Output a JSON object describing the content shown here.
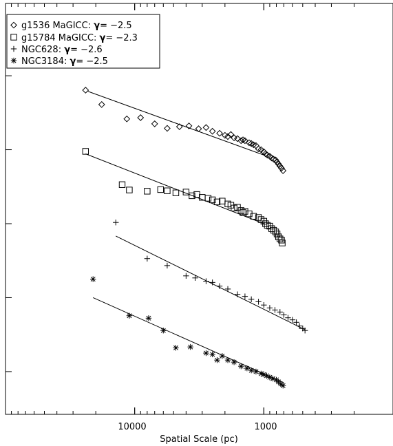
{
  "chart_data": {
    "type": "scatter",
    "title": "",
    "xlabel": "Spatial Scale (pc)",
    "ylabel": "",
    "x_scale": "log",
    "x_reversed": true,
    "xlim": [
      100000,
      100
    ],
    "x_tick_labels": [
      {
        "value": 10000,
        "label": "10000"
      },
      {
        "value": 1000,
        "label": "1000"
      }
    ],
    "ylim": [
      0,
      10
    ],
    "y_tick_values": [
      1.04,
      2.84,
      4.64,
      6.44,
      8.24
    ],
    "grid": false,
    "legend_placement": "top-left",
    "legend": [
      {
        "marker": "diamond",
        "text": "g1536 MaGICC: ",
        "gamma_symbol": "γ",
        "gamma_text": "= −2.5"
      },
      {
        "marker": "square",
        "text": "g15784 MaGICC: ",
        "gamma_symbol": "γ",
        "gamma_text": "= −2.3"
      },
      {
        "marker": "plus",
        "text": "NGC628: ",
        "gamma_symbol": "γ",
        "gamma_text": "= −2.6"
      },
      {
        "marker": "asterisk",
        "text": "NGC3184: ",
        "gamma_symbol": "γ",
        "gamma_text": "= −2.5"
      }
    ],
    "series": [
      {
        "name": "g1536 MaGICC",
        "marker": "diamond",
        "gamma": -2.5,
        "fit_line": [
          [
            23000,
            7.86
          ],
          [
            1000,
            6.31
          ]
        ],
        "points": [
          [
            24000,
            7.89
          ],
          [
            18000,
            7.54
          ],
          [
            11500,
            7.19
          ],
          [
            9000,
            7.22
          ],
          [
            7000,
            7.07
          ],
          [
            5600,
            6.96
          ],
          [
            4500,
            7.0
          ],
          [
            3800,
            7.02
          ],
          [
            3200,
            6.95
          ],
          [
            2800,
            6.98
          ],
          [
            2500,
            6.89
          ],
          [
            2200,
            6.84
          ],
          [
            2000,
            6.79
          ],
          [
            1900,
            6.76
          ],
          [
            1800,
            6.81
          ],
          [
            1700,
            6.73
          ],
          [
            1600,
            6.71
          ],
          [
            1500,
            6.66
          ],
          [
            1450,
            6.68
          ],
          [
            1400,
            6.66
          ],
          [
            1300,
            6.61
          ],
          [
            1250,
            6.59
          ],
          [
            1200,
            6.56
          ],
          [
            1150,
            6.54
          ],
          [
            1100,
            6.46
          ],
          [
            1050,
            6.44
          ],
          [
            1000,
            6.39
          ],
          [
            970,
            6.34
          ],
          [
            940,
            6.31
          ],
          [
            900,
            6.28
          ],
          [
            870,
            6.24
          ],
          [
            840,
            6.21
          ],
          [
            810,
            6.19
          ],
          [
            790,
            6.14
          ],
          [
            770,
            6.09
          ],
          [
            750,
            6.04
          ],
          [
            730,
            5.99
          ],
          [
            710,
            5.93
          ]
        ]
      },
      {
        "name": "g15784 MaGICC",
        "marker": "square",
        "gamma": -2.3,
        "fit_line": [
          [
            24000,
            6.34
          ],
          [
            1000,
            4.64
          ]
        ],
        "points": [
          [
            24000,
            6.4
          ],
          [
            12500,
            5.59
          ],
          [
            11000,
            5.46
          ],
          [
            8000,
            5.43
          ],
          [
            6300,
            5.47
          ],
          [
            5600,
            5.44
          ],
          [
            4800,
            5.39
          ],
          [
            4000,
            5.41
          ],
          [
            3600,
            5.32
          ],
          [
            3300,
            5.35
          ],
          [
            3000,
            5.28
          ],
          [
            2700,
            5.26
          ],
          [
            2500,
            5.22
          ],
          [
            2300,
            5.17
          ],
          [
            2100,
            5.19
          ],
          [
            1900,
            5.12
          ],
          [
            1800,
            5.09
          ],
          [
            1700,
            5.02
          ],
          [
            1600,
            5.04
          ],
          [
            1500,
            4.96
          ],
          [
            1450,
            4.91
          ],
          [
            1400,
            4.94
          ],
          [
            1300,
            4.88
          ],
          [
            1200,
            4.82
          ],
          [
            1100,
            4.79
          ],
          [
            1050,
            4.74
          ],
          [
            1000,
            4.7
          ],
          [
            970,
            4.64
          ],
          [
            940,
            4.6
          ],
          [
            900,
            4.58
          ],
          [
            870,
            4.52
          ],
          [
            840,
            4.48
          ],
          [
            810,
            4.44
          ],
          [
            790,
            4.39
          ],
          [
            770,
            4.32
          ],
          [
            750,
            4.27
          ],
          [
            730,
            4.24
          ],
          [
            720,
            4.17
          ]
        ]
      },
      {
        "name": "NGC628",
        "marker": "plus",
        "gamma": -2.6,
        "fit_line": [
          [
            14000,
            4.34
          ],
          [
            480,
            2.06
          ]
        ],
        "points": [
          [
            14000,
            4.67
          ],
          [
            8000,
            3.79
          ],
          [
            5600,
            3.62
          ],
          [
            4000,
            3.37
          ],
          [
            3400,
            3.32
          ],
          [
            2800,
            3.24
          ],
          [
            2500,
            3.21
          ],
          [
            2200,
            3.12
          ],
          [
            1900,
            3.05
          ],
          [
            1600,
            2.92
          ],
          [
            1400,
            2.87
          ],
          [
            1250,
            2.8
          ],
          [
            1100,
            2.74
          ],
          [
            1000,
            2.66
          ],
          [
            900,
            2.59
          ],
          [
            820,
            2.54
          ],
          [
            750,
            2.49
          ],
          [
            700,
            2.42
          ],
          [
            650,
            2.35
          ],
          [
            600,
            2.3
          ],
          [
            560,
            2.24
          ],
          [
            530,
            2.15
          ],
          [
            500,
            2.09
          ],
          [
            480,
            2.04
          ]
        ]
      },
      {
        "name": "NGC3184",
        "marker": "asterisk",
        "gamma": -2.5,
        "fit_line": [
          [
            21000,
            2.84
          ],
          [
            700,
            0.77
          ]
        ],
        "points": [
          [
            21000,
            3.29
          ],
          [
            11000,
            2.4
          ],
          [
            7800,
            2.34
          ],
          [
            6000,
            2.04
          ],
          [
            4800,
            1.62
          ],
          [
            3700,
            1.64
          ],
          [
            2800,
            1.49
          ],
          [
            2500,
            1.46
          ],
          [
            2300,
            1.32
          ],
          [
            2100,
            1.42
          ],
          [
            1900,
            1.32
          ],
          [
            1700,
            1.27
          ],
          [
            1500,
            1.17
          ],
          [
            1350,
            1.12
          ],
          [
            1250,
            1.07
          ],
          [
            1150,
            1.04
          ],
          [
            1050,
            0.99
          ],
          [
            1000,
            0.97
          ],
          [
            950,
            0.94
          ],
          [
            900,
            0.9
          ],
          [
            850,
            0.87
          ],
          [
            800,
            0.84
          ],
          [
            770,
            0.79
          ],
          [
            740,
            0.74
          ],
          [
            710,
            0.7
          ]
        ]
      }
    ]
  }
}
